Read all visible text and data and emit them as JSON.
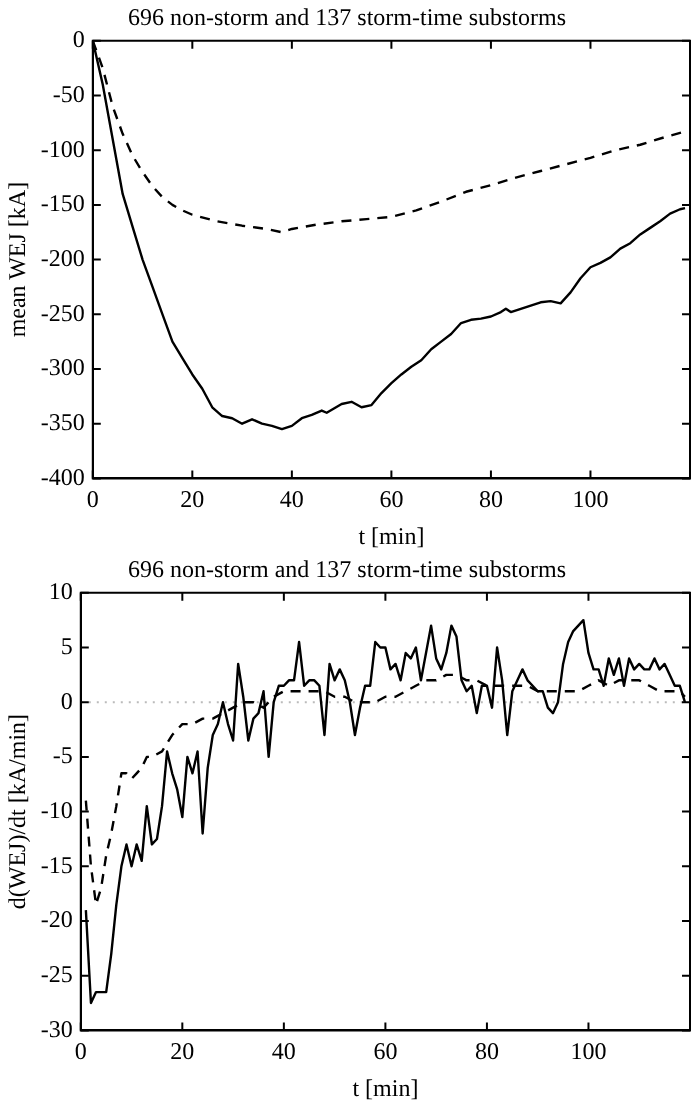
{
  "chart_data": [
    {
      "type": "line",
      "title": "696 non-storm and 137 storm-time substorms",
      "xlabel": "t [min]",
      "ylabel": "mean WEJ [kA]",
      "xlim": [
        0,
        120
      ],
      "xticks": [
        0,
        20,
        40,
        60,
        80,
        100
      ],
      "ylim": [
        -400,
        0
      ],
      "yticks": [
        -400,
        -350,
        -300,
        -250,
        -200,
        -150,
        -100,
        -50,
        0
      ],
      "grid": false,
      "legend": false,
      "marker": "none",
      "series": [
        {
          "color": "#000000",
          "line_style": "solid",
          "x": [
            0,
            2,
            4,
            6,
            8,
            10,
            12,
            14,
            16,
            18,
            20,
            22,
            24,
            26,
            28,
            30,
            32,
            34,
            36,
            38,
            40,
            42,
            44,
            46,
            47,
            50,
            52,
            54,
            56,
            58,
            60,
            62,
            64,
            66,
            68,
            70,
            72,
            74,
            76,
            78,
            80,
            82,
            83,
            84,
            86,
            88,
            90,
            92,
            94,
            96,
            98,
            100,
            102,
            104,
            106,
            108,
            110,
            112,
            114,
            116,
            118,
            119
          ],
          "values": [
            0,
            -40,
            -90,
            -140,
            -170,
            -200,
            -225,
            -250,
            -275,
            -290,
            -305,
            -318,
            -335,
            -343,
            -345,
            -350,
            -346,
            -350,
            -352,
            -355,
            -352,
            -345,
            -342,
            -338,
            -340,
            -332,
            -330,
            -335,
            -333,
            -322,
            -313,
            -305,
            -298,
            -292,
            -282,
            -275,
            -268,
            -258,
            -255,
            -254,
            -252,
            -248,
            -245,
            -248,
            -245,
            -242,
            -239,
            -238,
            -240,
            -230,
            -217,
            -207,
            -203,
            -198,
            -190,
            -185,
            -177,
            -171,
            -165,
            -158,
            -154,
            -153
          ]
        },
        {
          "color": "#000000",
          "line_style": "dashed",
          "x": [
            0,
            2,
            4,
            6,
            8,
            10,
            12,
            14,
            16,
            18,
            20,
            25,
            30,
            35,
            38,
            40,
            45,
            50,
            55,
            60,
            65,
            70,
            75,
            80,
            85,
            90,
            95,
            100,
            105,
            110,
            115,
            119
          ],
          "values": [
            0,
            -25,
            -60,
            -85,
            -105,
            -120,
            -133,
            -143,
            -150,
            -155,
            -159,
            -165,
            -169,
            -172,
            -175,
            -172,
            -168,
            -165,
            -163,
            -161,
            -155,
            -147,
            -138,
            -132,
            -125,
            -119,
            -113,
            -107,
            -100,
            -95,
            -88,
            -83
          ]
        }
      ]
    },
    {
      "type": "line",
      "title": "696 non-storm and 137 storm-time substorms",
      "xlabel": "t [min]",
      "ylabel": "d(WEJ)/dt [kA/min]",
      "xlim": [
        0,
        120
      ],
      "xticks": [
        0,
        20,
        40,
        60,
        80,
        100
      ],
      "ylim": [
        -30,
        10
      ],
      "yticks": [
        -30,
        -25,
        -20,
        -15,
        -10,
        -5,
        0,
        5,
        10
      ],
      "grid": false,
      "legend": false,
      "marker": "none",
      "ref_lines": [
        {
          "axis": "y",
          "value": 0,
          "color": "#bbbbbb",
          "line_style": "dotted"
        }
      ],
      "series": [
        {
          "color": "#000000",
          "line_style": "solid",
          "x": [
            1,
            2,
            3,
            4,
            5,
            6,
            7,
            8,
            9,
            10,
            11,
            12,
            13,
            14,
            15,
            16,
            17,
            18,
            19,
            20,
            21,
            22,
            23,
            24,
            25,
            26,
            27,
            28,
            29,
            30,
            31,
            32,
            33,
            34,
            35,
            36,
            37,
            38,
            39,
            40,
            41,
            42,
            43,
            44,
            45,
            46,
            47,
            48,
            49,
            50,
            51,
            52,
            53,
            54,
            55,
            56,
            57,
            58,
            59,
            60,
            61,
            62,
            63,
            64,
            65,
            66,
            67,
            68,
            69,
            70,
            71,
            72,
            73,
            74,
            75,
            76,
            77,
            78,
            79,
            80,
            81,
            82,
            83,
            84,
            85,
            86,
            87,
            88,
            89,
            90,
            91,
            92,
            93,
            94,
            95,
            96,
            97,
            98,
            99,
            100,
            101,
            102,
            103,
            104,
            105,
            106,
            107,
            108,
            109,
            110,
            111,
            112,
            113,
            114,
            115,
            116,
            117,
            118,
            119
          ],
          "values": [
            -19,
            -27.5,
            -26.5,
            -26.5,
            -26.5,
            -23,
            -18.5,
            -15,
            -13,
            -15,
            -13,
            -14.5,
            -9.5,
            -13,
            -12.5,
            -9.5,
            -4.5,
            -6.5,
            -8,
            -10.5,
            -5,
            -6.5,
            -4.5,
            -12,
            -6,
            -3,
            -2,
            0,
            -2,
            -3.5,
            3.5,
            0.5,
            -3.5,
            -1.5,
            -1,
            1,
            -5,
            0,
            1.5,
            1.5,
            2,
            2,
            5.5,
            1.5,
            2,
            2,
            1.5,
            -3,
            3.5,
            2,
            3,
            2,
            0,
            -3,
            -0.5,
            1.5,
            1.5,
            5.5,
            5,
            5,
            3,
            3.5,
            2,
            4.5,
            4,
            5,
            2,
            4.5,
            7,
            4,
            3,
            4.5,
            7,
            6,
            2,
            1,
            1.5,
            -1,
            1.5,
            1.5,
            -0.5,
            5,
            2,
            -3,
            1,
            2,
            3,
            2,
            1.5,
            1,
            1,
            -0.5,
            -1,
            0,
            3.5,
            5.5,
            6.5,
            7,
            7.5,
            4.5,
            3,
            3,
            1.5,
            4,
            2.5,
            4,
            1.5,
            4,
            3,
            3.5,
            3,
            3,
            4,
            3,
            3.5,
            2.5,
            1.5,
            1.5,
            0
          ]
        },
        {
          "color": "#000000",
          "line_style": "dashed",
          "x": [
            1,
            2,
            3,
            4,
            5,
            6,
            7,
            8,
            9,
            10,
            11,
            12,
            13,
            14,
            16,
            18,
            20,
            22,
            24,
            26,
            28,
            30,
            32,
            34,
            36,
            38,
            40,
            42,
            44,
            46,
            48,
            50,
            52,
            54,
            56,
            58,
            60,
            62,
            64,
            66,
            68,
            70,
            72,
            74,
            76,
            78,
            80,
            82,
            84,
            86,
            88,
            90,
            92,
            94,
            96,
            98,
            100,
            102,
            104,
            106,
            108,
            110,
            112,
            114,
            116,
            118,
            119
          ],
          "values": [
            -9,
            -15,
            -18.5,
            -17,
            -14,
            -12,
            -9.5,
            -6.5,
            -6.5,
            -7,
            -6.5,
            -6,
            -5,
            -5,
            -4.5,
            -3,
            -2,
            -2,
            -1.5,
            -1.5,
            -1,
            -0.5,
            0,
            0,
            -0.5,
            0.5,
            1,
            1,
            1,
            1,
            1,
            0.5,
            0.5,
            0,
            0,
            0,
            0.5,
            0.5,
            1,
            1.5,
            2,
            2,
            2.5,
            2.5,
            2,
            2,
            1.5,
            1.5,
            1.5,
            1.5,
            1.5,
            1,
            1,
            1,
            1,
            1,
            1.5,
            2,
            1.5,
            2,
            2,
            2,
            1.5,
            1,
            1,
            1,
            0.5
          ]
        }
      ]
    }
  ]
}
